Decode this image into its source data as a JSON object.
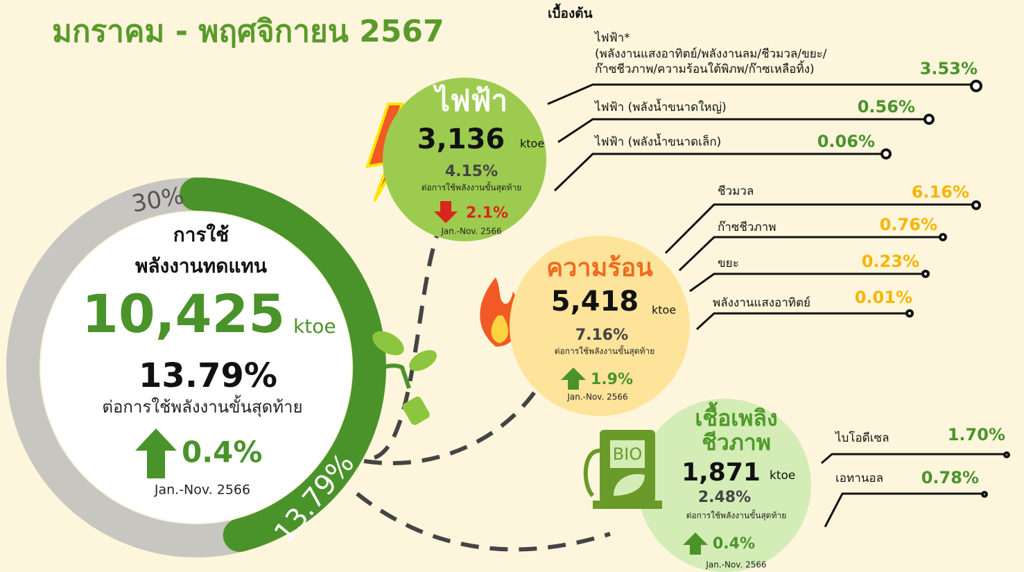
{
  "title": "มกราคม - พฤศจิกายน 2567",
  "note": "เบื้องต้น",
  "main": {
    "label_lines": [
      "การใช้",
      "พลังงานทดแทน"
    ],
    "value": "10,425",
    "unit": "ktoe",
    "share": "13.79%",
    "desc": "ต่อการใช้พลังงานขั้นสุดท้าย",
    "change": "0.4%",
    "period": "Jan.-Nov. 2566",
    "gauge": {
      "max": {
        "value": 30,
        "label": "30%"
      },
      "current": {
        "value": 13.79,
        "label": "13.79%"
      },
      "track_color": "#c8c6c1",
      "fill_color": "#4a932a"
    }
  },
  "electricity": {
    "title": "ไฟฟ้า",
    "value": "3,136",
    "unit": "ktoe",
    "share": "4.15%",
    "desc": "ต่อการใช้พลังงานขั้นสุดท้าย",
    "change": "2.1%",
    "period": "Jan.-Nov. 2566",
    "items": [
      {
        "name": [
          "ไฟฟ้า*",
          "(พลังงานแสงอาทิตย์/พลังงานลม/ชีวมวล/ขยะ/",
          "ก๊าซชีวภาพ/ความร้อนใต้พิภพ/ก๊าซเหลือทิ้ง)"
        ],
        "value": "3.53%"
      },
      {
        "name": [
          "ไฟฟ้า (พลังน้ำขนาดใหญ่)"
        ],
        "value": "0.56%"
      },
      {
        "name": [
          "ไฟฟ้า (พลังน้ำขนาดเล็ก)"
        ],
        "value": "0.06%"
      }
    ]
  },
  "heat": {
    "title": "ความร้อน",
    "value": "5,418",
    "unit": "ktoe",
    "share": "7.16%",
    "desc": "ต่อการใช้พลังงานขั้นสุดท้าย",
    "change": "1.9%",
    "period": "Jan.-Nov. 2566",
    "items": [
      {
        "name": [
          "ชีวมวล"
        ],
        "value": "6.16%"
      },
      {
        "name": [
          "ก๊าซชีวภาพ"
        ],
        "value": "0.76%"
      },
      {
        "name": [
          "ขยะ"
        ],
        "value": "0.23%"
      },
      {
        "name": [
          "พลังงานแสงอาทิตย์"
        ],
        "value": "0.01%"
      }
    ]
  },
  "biofuel": {
    "title_lines": [
      "เชื้อเพลิง",
      "ชีวภาพ"
    ],
    "icon_label": "BIO",
    "value": "1,871",
    "unit": "ktoe",
    "share": "2.48%",
    "desc": "ต่อการใช้พลังงานขั้นสุดท้าย",
    "change": "0.4%",
    "period": "Jan.-Nov. 2566",
    "items": [
      {
        "name": [
          "ไบโอดีเซล"
        ],
        "value": "1.70%"
      },
      {
        "name": [
          "เอทานอล"
        ],
        "value": "0.78%"
      }
    ]
  }
}
